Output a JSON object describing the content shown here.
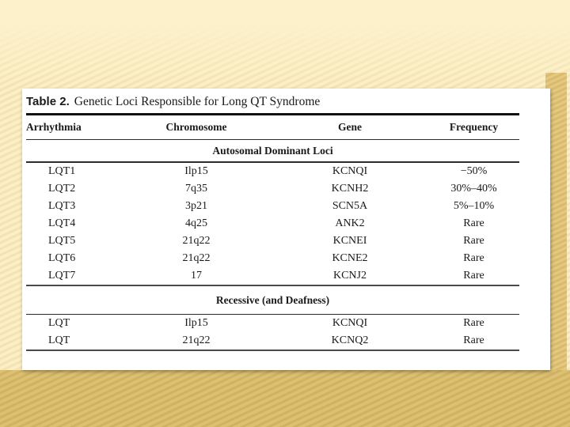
{
  "colors": {
    "background_cream": "#FBEFC7",
    "background_gold_bottom": "#DCC173",
    "background_gold_right": "#E5C981",
    "panel_white": "#FFFFFF",
    "text_black": "#1A1A1A"
  },
  "table": {
    "title_label": "Table 2.",
    "title_text": "Genetic Loci Responsible for Long QT Syndrome",
    "columns": [
      "Arrhythmia",
      "Chromosome",
      "Gene",
      "Frequency"
    ],
    "sections": [
      {
        "heading": "Autosomal Dominant Loci",
        "rows": [
          [
            "LQT1",
            "Ilp15",
            "KCNQI",
            "−50%"
          ],
          [
            "LQT2",
            "7q35",
            "KCNH2",
            "30%–40%"
          ],
          [
            "LQT3",
            "3p21",
            "SCN5A",
            "5%–10%"
          ],
          [
            "LQT4",
            "4q25",
            "ANK2",
            "Rare"
          ],
          [
            "LQT5",
            "21q22",
            "KCNEI",
            "Rare"
          ],
          [
            "LQT6",
            "21q22",
            "KCNE2",
            "Rare"
          ],
          [
            "LQT7",
            "17",
            "KCNJ2",
            "Rare"
          ]
        ]
      },
      {
        "heading": "Recessive (and Deafness)",
        "rows": [
          [
            "LQT",
            "Ilp15",
            "KCNQI",
            "Rare"
          ],
          [
            "LQT",
            "21q22",
            "KCNQ2",
            "Rare"
          ]
        ]
      }
    ]
  }
}
